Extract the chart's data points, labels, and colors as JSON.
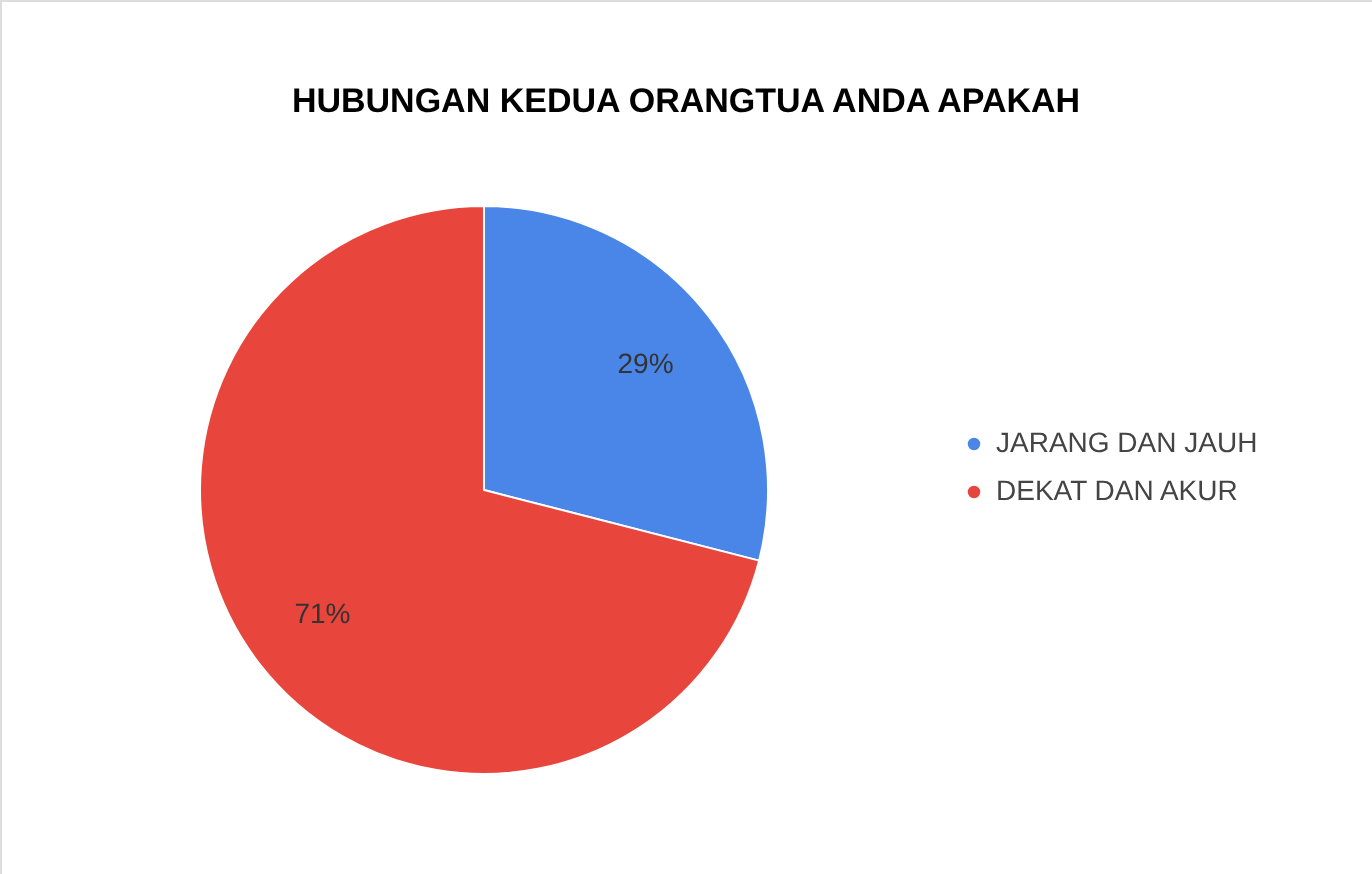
{
  "chart_data": {
    "type": "pie",
    "title": "HUBUNGAN KEDUA ORANGTUA ANDA APAKAH",
    "categories": [
      "JARANG DAN JAUH",
      "DEKAT DAN AKUR"
    ],
    "values": [
      29,
      71
    ],
    "colors": [
      "#4a86e8",
      "#e8453c"
    ],
    "value_labels": [
      "29%",
      "71%"
    ],
    "legend": "right"
  }
}
